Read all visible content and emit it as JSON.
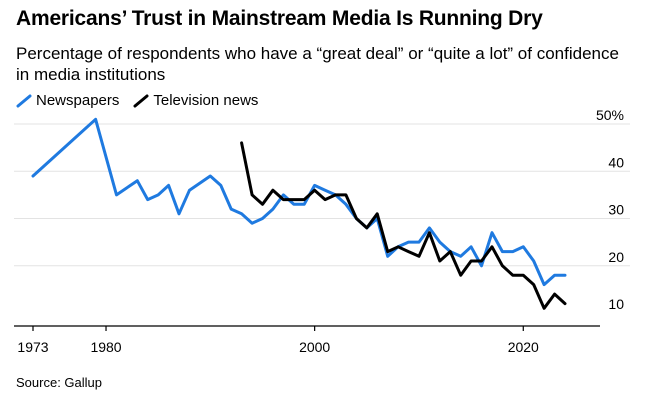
{
  "header": {
    "title": "Americans’ Trust in Mainstream Media Is Running Dry",
    "subtitle": "Percentage of respondents who have a “great deal” or “quite a lot” of confidence in media institutions"
  },
  "footer": {
    "source": "Source: Gallup"
  },
  "chart_data": {
    "type": "line",
    "title": "Americans’ Trust in Mainstream Media Is Running Dry",
    "subtitle": "Percentage of respondents who have a “great deal” or “quite a lot” of confidence in media institutions",
    "xlabel": "",
    "ylabel": "",
    "xlim": [
      1973,
      2024
    ],
    "ylim": [
      10,
      50
    ],
    "x_ticks": [
      1973,
      1980,
      2000,
      2020
    ],
    "x_tick_labels": [
      "1973",
      "1980",
      "2000",
      "2020"
    ],
    "y_ticks": [
      10,
      20,
      30,
      40,
      50
    ],
    "y_tick_labels": [
      "10",
      "20",
      "30",
      "40",
      "50%"
    ],
    "grid": "horizontal",
    "legend": "top-left",
    "series": [
      {
        "name": "Newspapers",
        "color": "#1f7ae0",
        "x": [
          1973,
          1979,
          1981,
          1983,
          1984,
          1985,
          1986,
          1987,
          1988,
          1990,
          1991,
          1992,
          1993,
          1994,
          1995,
          1996,
          1997,
          1998,
          1999,
          2000,
          2001,
          2002,
          2003,
          2004,
          2005,
          2006,
          2007,
          2008,
          2009,
          2010,
          2011,
          2012,
          2013,
          2014,
          2015,
          2016,
          2017,
          2018,
          2019,
          2020,
          2021,
          2022,
          2023,
          2024
        ],
        "values": [
          39,
          51,
          35,
          38,
          34,
          35,
          37,
          31,
          36,
          39,
          37,
          32,
          31,
          29,
          30,
          32,
          35,
          33,
          33,
          37,
          36,
          35,
          33,
          30,
          28,
          30,
          22,
          24,
          25,
          25,
          28,
          25,
          23,
          22,
          24,
          20,
          27,
          23,
          23,
          24,
          21,
          16,
          18,
          18
        ]
      },
      {
        "name": "Television news",
        "color": "#000000",
        "x": [
          1993,
          1994,
          1995,
          1996,
          1997,
          1998,
          1999,
          2000,
          2001,
          2002,
          2003,
          2004,
          2005,
          2006,
          2007,
          2008,
          2009,
          2010,
          2011,
          2012,
          2013,
          2014,
          2015,
          2016,
          2017,
          2018,
          2019,
          2020,
          2021,
          2022,
          2023,
          2024
        ],
        "values": [
          46,
          35,
          33,
          36,
          34,
          34,
          34,
          36,
          34,
          35,
          35,
          30,
          28,
          31,
          23,
          24,
          23,
          22,
          27,
          21,
          23,
          18,
          21,
          21,
          24,
          20,
          18,
          18,
          16,
          11,
          14,
          12
        ]
      }
    ]
  }
}
